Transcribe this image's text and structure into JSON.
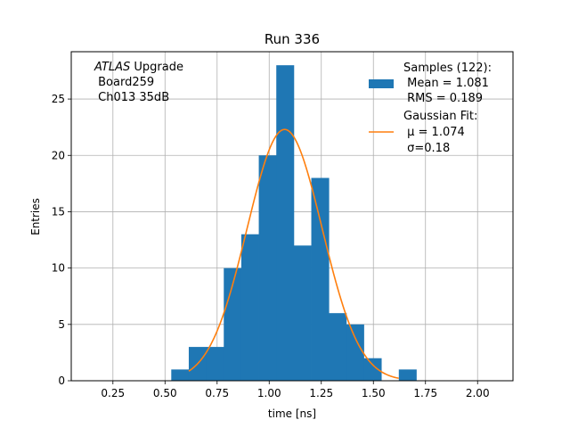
{
  "chart_data": {
    "type": "bar",
    "title": "Run 336",
    "xlabel": "time [ns]",
    "ylabel": "Entries",
    "xlim": [
      0.05,
      2.17
    ],
    "ylim": [
      0,
      29.2
    ],
    "xticks": [
      0.25,
      0.5,
      0.75,
      1.0,
      1.25,
      1.5,
      1.75,
      2.0
    ],
    "xtick_labels": [
      "0.25",
      "0.50",
      "0.75",
      "1.00",
      "1.25",
      "1.50",
      "1.75",
      "2.00"
    ],
    "yticks": [
      0,
      5,
      10,
      15,
      20,
      25
    ],
    "ytick_labels": [
      "0",
      "5",
      "10",
      "15",
      "20",
      "25"
    ],
    "grid": true,
    "legend_position": "top-right",
    "histogram": {
      "name": "Samples (122):",
      "color": "#1f77b4",
      "bin_edges": [
        0.53,
        0.614,
        0.698,
        0.782,
        0.866,
        0.95,
        1.034,
        1.118,
        1.202,
        1.286,
        1.37,
        1.454,
        1.538,
        1.622,
        1.706
      ],
      "counts": [
        1,
        3,
        3,
        10,
        13,
        20,
        28,
        12,
        18,
        6,
        5,
        2,
        0,
        1
      ]
    },
    "fit": {
      "name": "Gaussian Fit:",
      "color": "#ff7f0e",
      "amplitude": 22.3,
      "mu": 1.074,
      "sigma": 0.18,
      "x_range": [
        0.614,
        1.622
      ]
    },
    "legend": {
      "hist_lines": [
        "Samples (122):",
        " Mean = 1.081",
        " RMS = 0.189"
      ],
      "fit_lines": [
        "Gaussian Fit:",
        " μ = 1.074",
        " σ=0.18"
      ]
    },
    "annotation": {
      "italic": "ATLAS",
      "line1_rest": " Upgrade",
      "line2": " Board259",
      "line3": " Ch013 35dB"
    }
  }
}
